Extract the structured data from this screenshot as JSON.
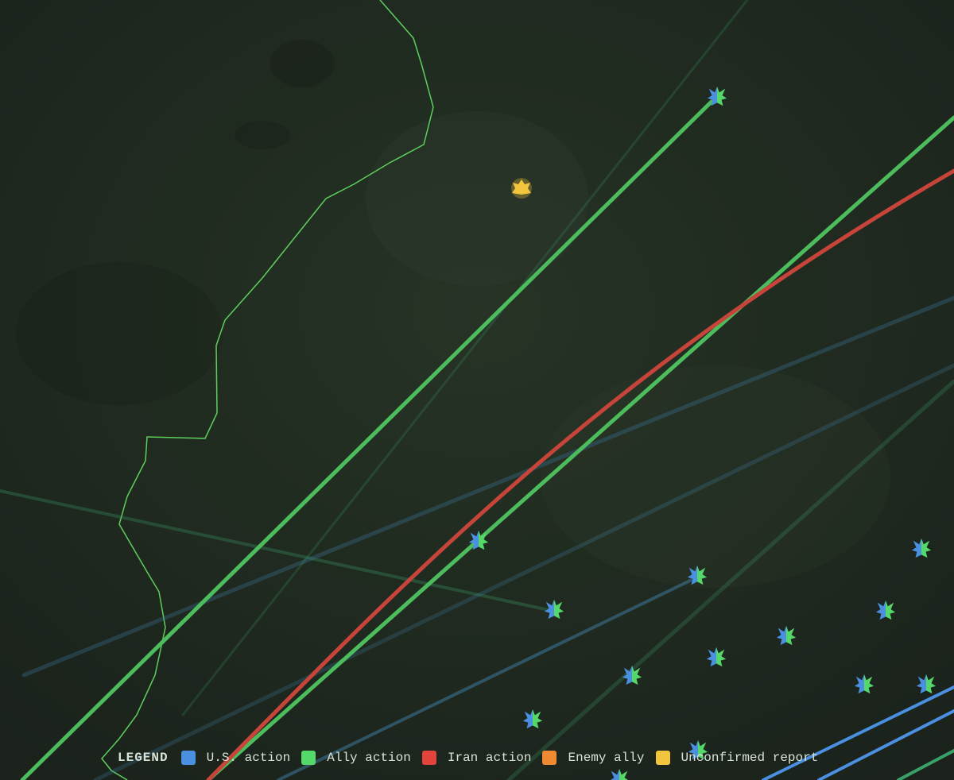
{
  "legend": {
    "title": "LEGEND",
    "items": [
      {
        "label": "U.S. action",
        "color": "#4a8fe0"
      },
      {
        "label": "Ally action",
        "color": "#55d86a"
      },
      {
        "label": "Iran action",
        "color": "#e2433a"
      },
      {
        "label": "Enemy ally",
        "color": "#ef8a33"
      },
      {
        "label": "Unconfirmed report",
        "color": "#f2c53d"
      }
    ]
  }
}
